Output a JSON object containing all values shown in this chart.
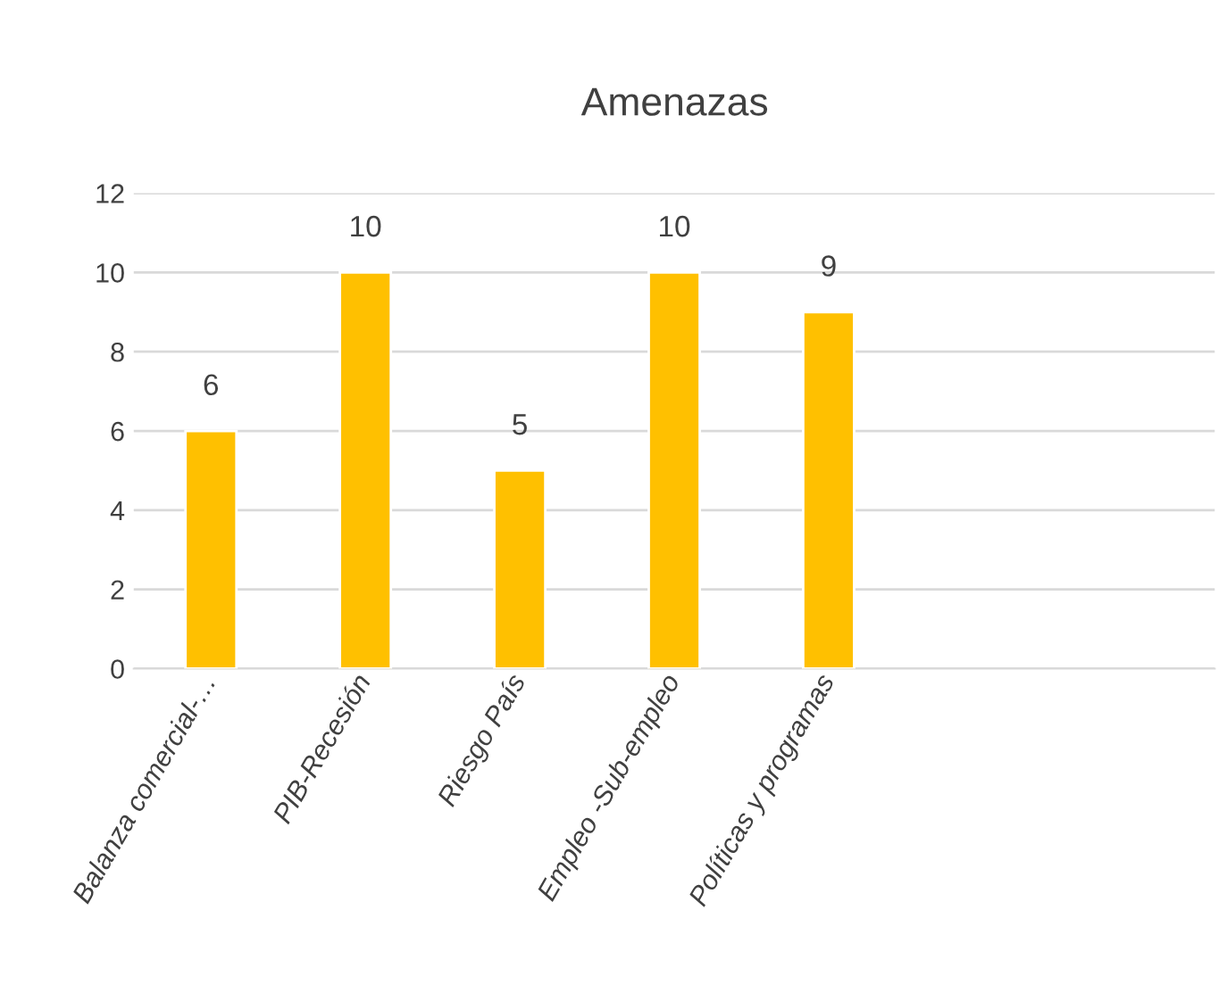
{
  "chart_data": {
    "type": "bar",
    "title": "Amenazas",
    "categories": [
      "Balanza comercial-…",
      "PIB-Recesión",
      "Riesgo País",
      "Empleo -Sub-empleo",
      "Políticas y programas",
      null,
      null
    ],
    "values": [
      6,
      10,
      5,
      10,
      9,
      null,
      null
    ],
    "color": "#ffc000",
    "ylim": [
      0,
      12
    ],
    "yticks": [
      0,
      2,
      4,
      6,
      8,
      10,
      12
    ],
    "grid": "y",
    "data_labels": true
  }
}
